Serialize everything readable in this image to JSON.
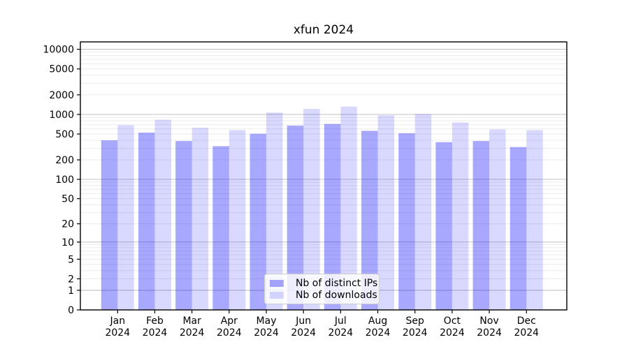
{
  "chart_data": {
    "type": "bar",
    "title": "xfun 2024",
    "xlabel": "",
    "ylabel": "",
    "categories": [
      "Jan 2024",
      "Feb 2024",
      "Mar 2024",
      "Apr 2024",
      "May 2024",
      "Jun 2024",
      "Jul 2024",
      "Aug 2024",
      "Sep 2024",
      "Oct 2024",
      "Nov 2024",
      "Dec 2024"
    ],
    "series": [
      {
        "name": "Nb of distinct IPs",
        "color": "#0000ff",
        "opacity": 0.34,
        "values": [
          400,
          525,
          390,
          325,
          505,
          675,
          715,
          560,
          515,
          375,
          390,
          315
        ]
      },
      {
        "name": "Nb of downloads",
        "color": "#0000ff",
        "opacity": 0.15,
        "values": [
          685,
          830,
          625,
          575,
          1070,
          1220,
          1320,
          970,
          1015,
          755,
          590,
          575
        ]
      }
    ],
    "yscale": "log1p",
    "ylim": [
      0,
      13000
    ],
    "yticks": [
      0,
      1,
      2,
      5,
      10,
      20,
      50,
      100,
      200,
      500,
      1000,
      2000,
      5000,
      10000
    ],
    "grid": true,
    "legend_position": "lower center"
  },
  "colors": {
    "background": "#ffffff",
    "major_grid": "#c8c8c8",
    "minor_grid": "#ebebeb",
    "spine": "#000000",
    "tick_text": "#000000",
    "legend_border": "#cccccc"
  }
}
